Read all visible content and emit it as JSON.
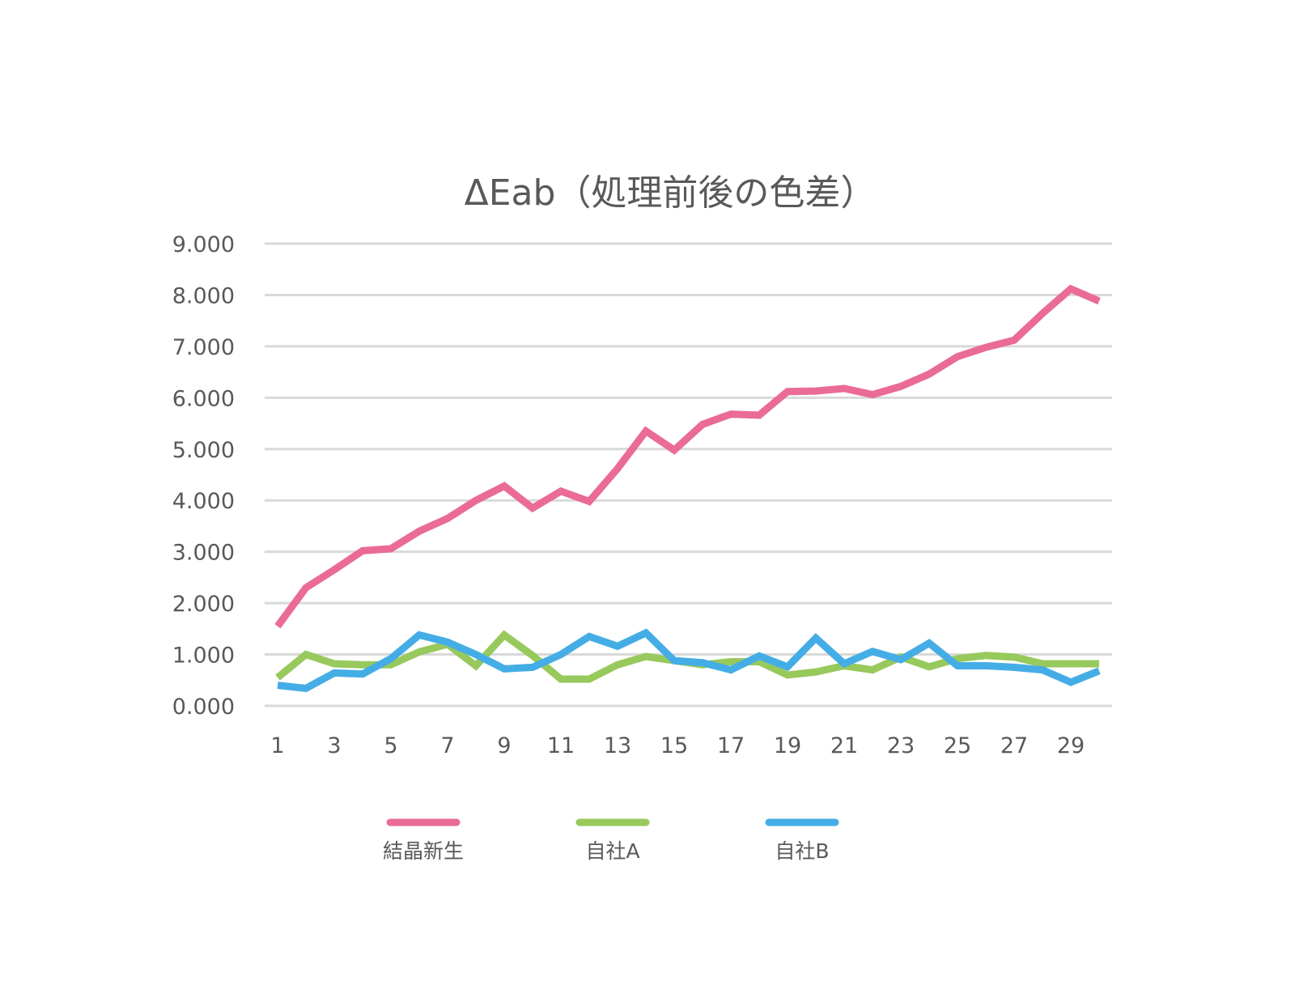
{
  "chart_data": {
    "type": "line",
    "title": "ΔEab（処理前後の色差）",
    "xlabel": "",
    "ylabel": "",
    "x": [
      1,
      2,
      3,
      4,
      5,
      6,
      7,
      8,
      9,
      10,
      11,
      12,
      13,
      14,
      15,
      16,
      17,
      18,
      19,
      20,
      21,
      22,
      23,
      24,
      25,
      26,
      27,
      28,
      29,
      30
    ],
    "x_tick_labels": [
      "1",
      "3",
      "5",
      "7",
      "9",
      "11",
      "13",
      "15",
      "17",
      "19",
      "21",
      "23",
      "25",
      "27",
      "29"
    ],
    "y_tick_labels": [
      "0.000",
      "1.000",
      "2.000",
      "3.000",
      "4.000",
      "5.000",
      "6.000",
      "7.000",
      "8.000",
      "9.000"
    ],
    "ylim": [
      0,
      9
    ],
    "grid": true,
    "legend_position": "bottom",
    "series": [
      {
        "name": "結晶新生",
        "color": "#ea6b98",
        "values": [
          1.55,
          2.3,
          2.65,
          3.02,
          3.06,
          3.4,
          3.65,
          4.0,
          4.28,
          3.85,
          4.18,
          3.98,
          4.62,
          5.35,
          4.98,
          5.48,
          5.68,
          5.66,
          6.12,
          6.13,
          6.18,
          6.06,
          6.22,
          6.46,
          6.8,
          6.98,
          7.12,
          7.64,
          8.12,
          7.88
        ]
      },
      {
        "name": "自社A",
        "color": "#97c95c",
        "values": [
          0.55,
          1.0,
          0.82,
          0.8,
          0.8,
          1.05,
          1.2,
          0.78,
          1.38,
          0.98,
          0.52,
          0.52,
          0.8,
          0.96,
          0.88,
          0.8,
          0.86,
          0.86,
          0.6,
          0.66,
          0.78,
          0.7,
          0.95,
          0.76,
          0.92,
          0.98,
          0.95,
          0.82,
          0.82,
          0.82
        ]
      },
      {
        "name": "自社B",
        "color": "#45ade6",
        "values": [
          0.4,
          0.34,
          0.64,
          0.62,
          0.92,
          1.38,
          1.24,
          1.0,
          0.72,
          0.75,
          1.0,
          1.35,
          1.16,
          1.42,
          0.88,
          0.84,
          0.7,
          0.97,
          0.76,
          1.32,
          0.82,
          1.06,
          0.9,
          1.22,
          0.78,
          0.78,
          0.75,
          0.7,
          0.46,
          0.68
        ]
      }
    ]
  }
}
